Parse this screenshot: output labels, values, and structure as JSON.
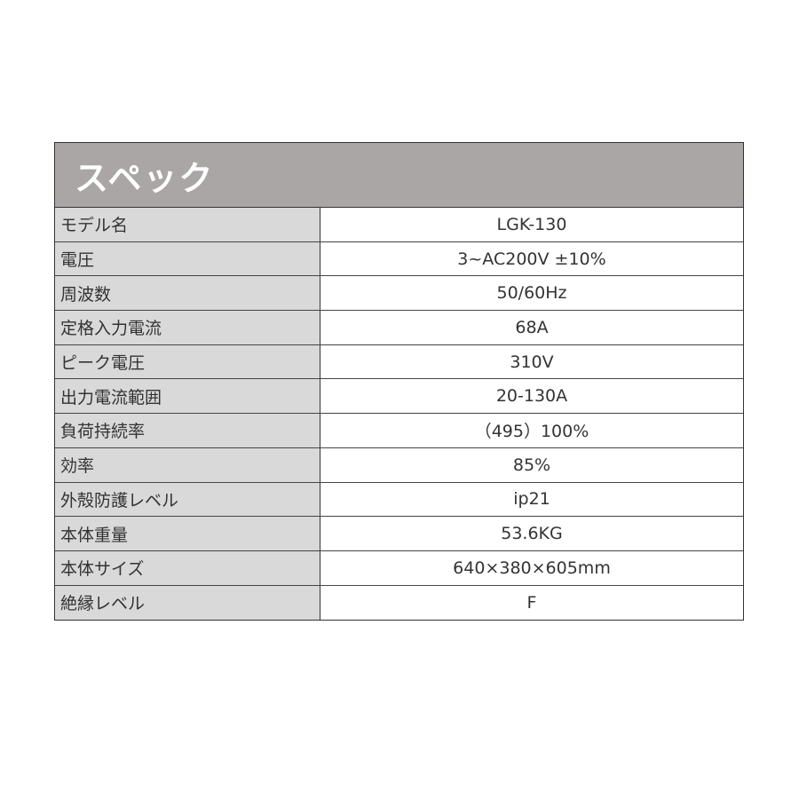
{
  "title": "スペック",
  "rows": [
    {
      "label": "モデル名",
      "value": "LGK-130"
    },
    {
      "label": "電圧",
      "value": "3~AC200V ±10%"
    },
    {
      "label": "周波数",
      "value": "50/60Hz"
    },
    {
      "label": "定格入力電流",
      "value": "68A"
    },
    {
      "label": "ピーク電圧",
      "value": "310V"
    },
    {
      "label": "出力電流範囲",
      "value": "20-130A"
    },
    {
      "label": "負荷持続率",
      "value": "（495）100%"
    },
    {
      "label": "効率",
      "value": "85%"
    },
    {
      "label": "外殻防護レベル",
      "value": "ip21"
    },
    {
      "label": "本体重量",
      "value": "53.6KG"
    },
    {
      "label": "本体サイズ",
      "value": "640×380×605mm"
    },
    {
      "label": "絶縁レベル",
      "value": "F"
    }
  ]
}
